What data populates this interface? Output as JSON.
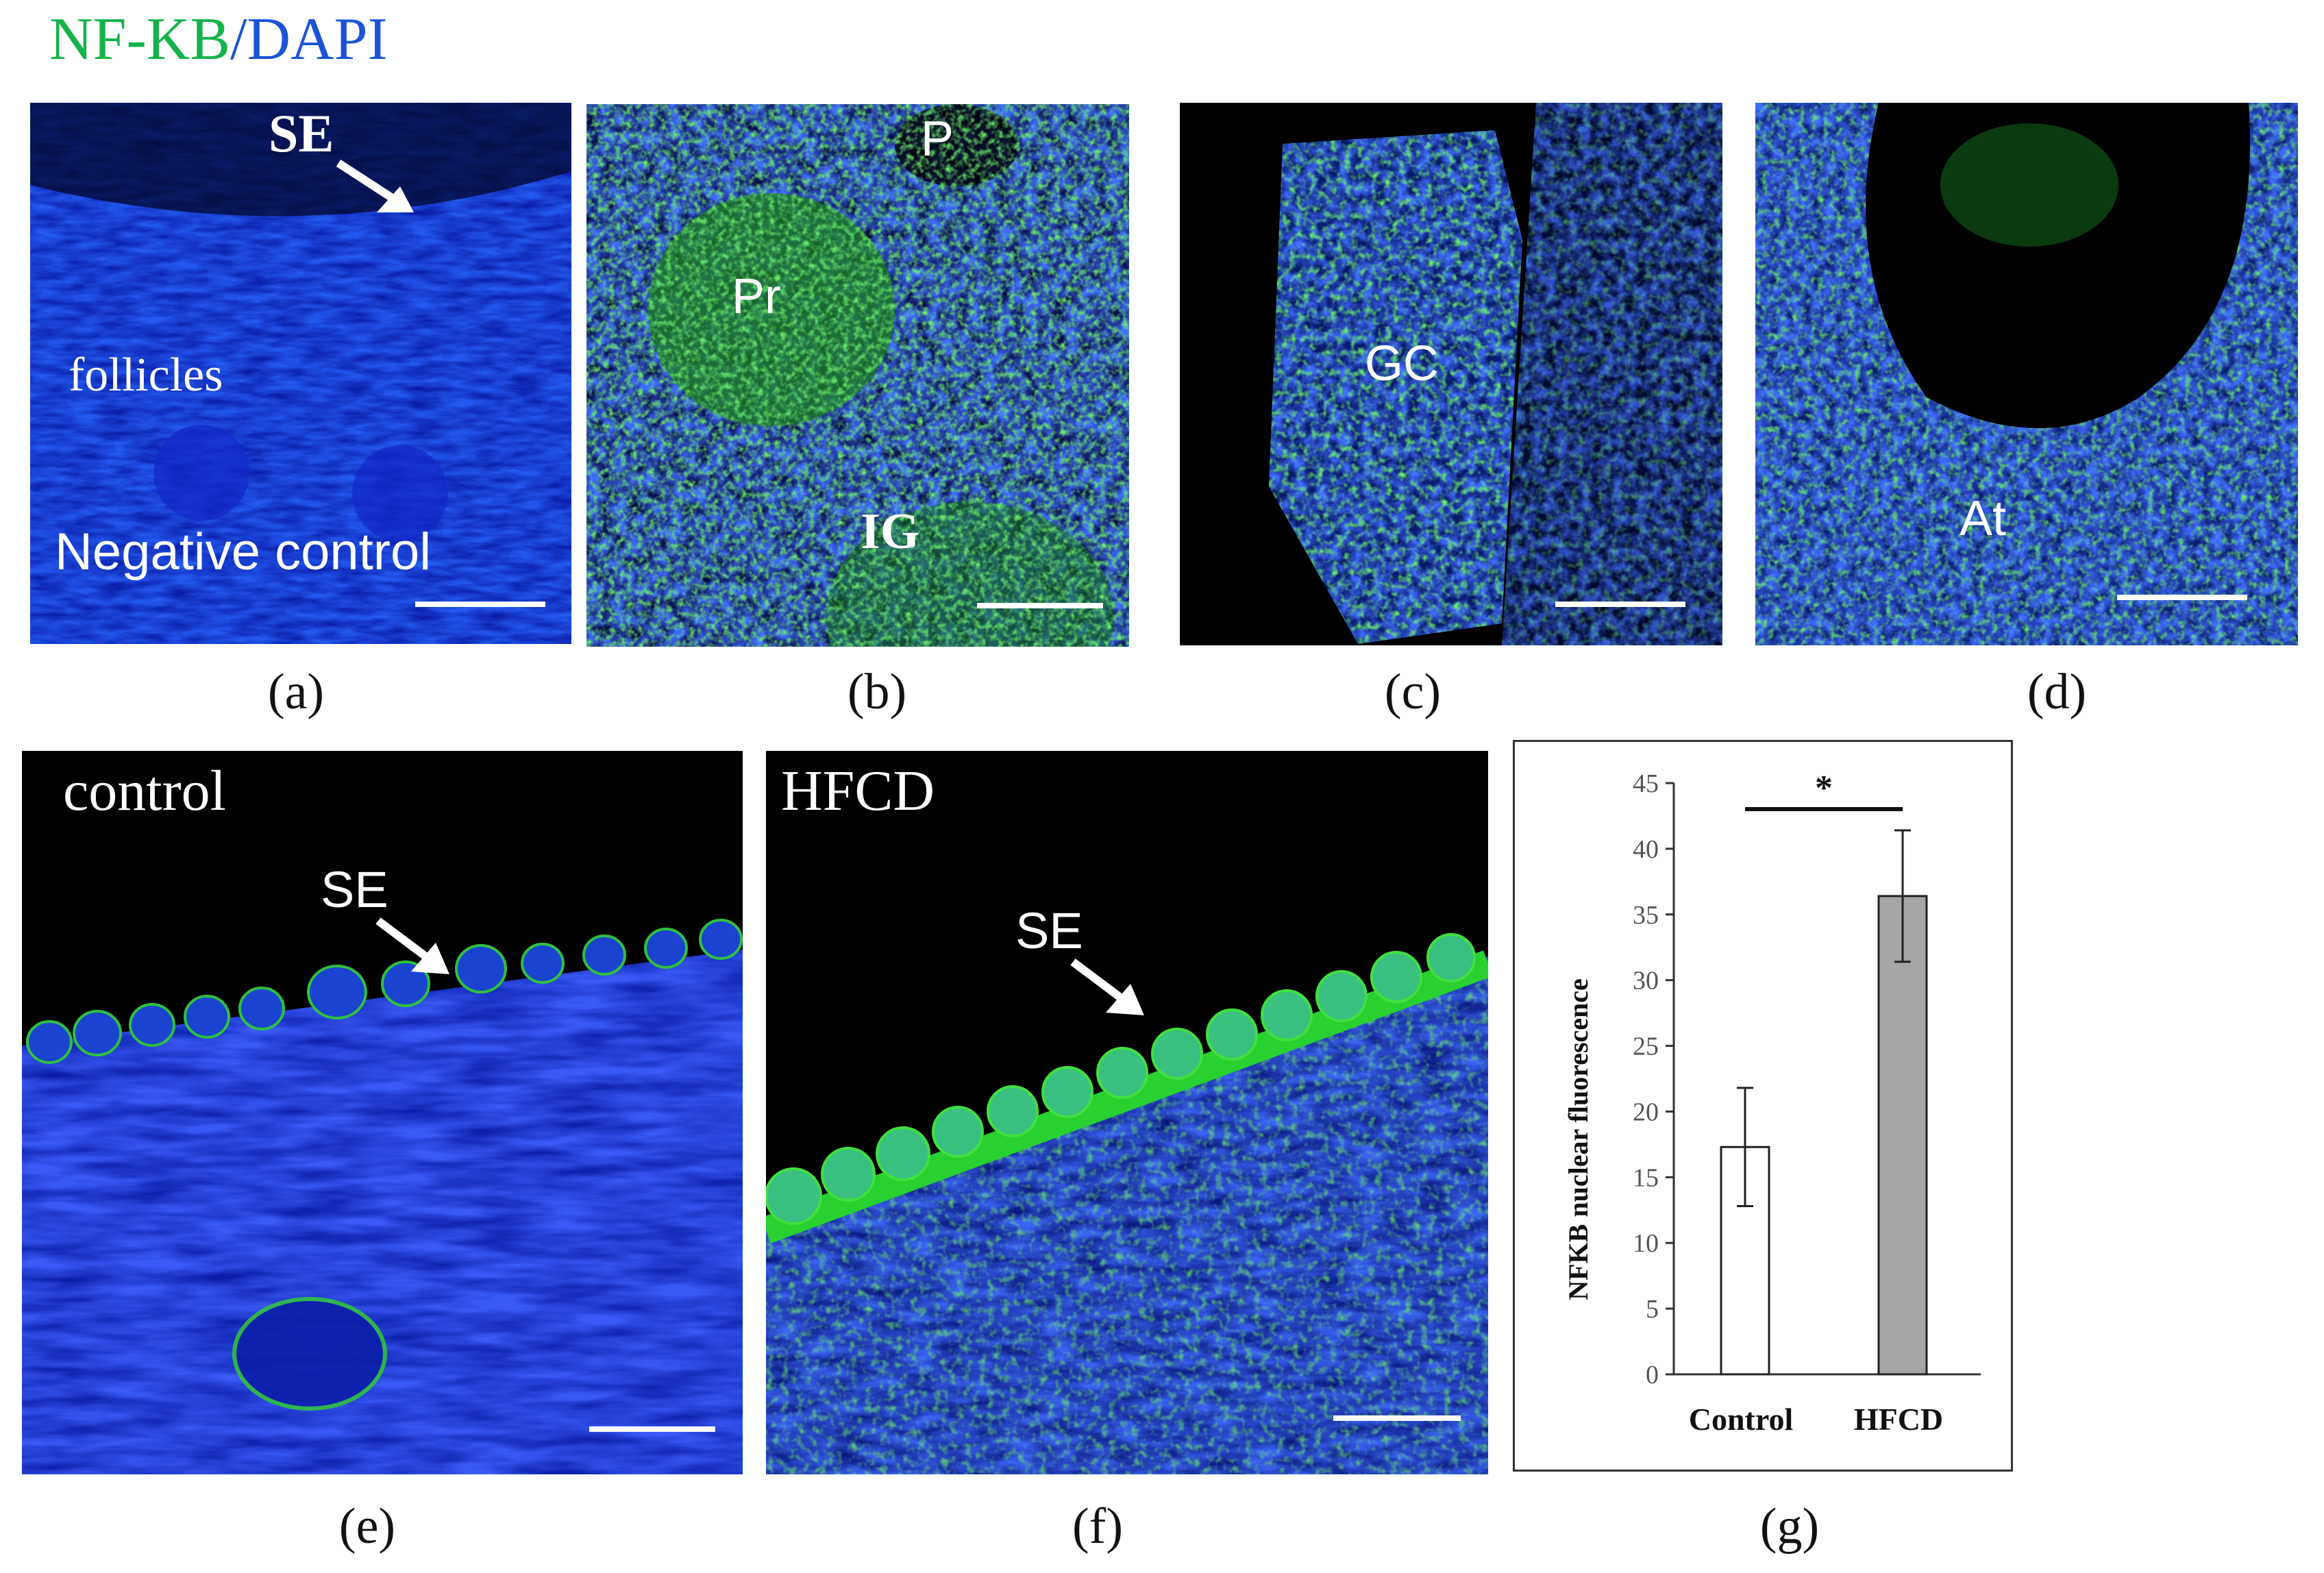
{
  "figure_title": {
    "green": "NF-KB",
    "sep": "/",
    "blue": "DAPI",
    "green_color": "#14b24a",
    "blue_color": "#1a53d6"
  },
  "panels": {
    "a": {
      "caption": "(a)",
      "labels": {
        "se": "SE",
        "follicles": "follicles",
        "negative": "Negative control"
      }
    },
    "b": {
      "caption": "(b)",
      "labels": {
        "p": "P",
        "pr": "Pr",
        "ig": "IG"
      }
    },
    "c": {
      "caption": "(c)",
      "labels": {
        "gc": "GC"
      }
    },
    "d": {
      "caption": "(d)",
      "labels": {
        "at": "At"
      }
    },
    "e": {
      "caption": "(e)",
      "labels": {
        "title": "control",
        "se": "SE"
      }
    },
    "f": {
      "caption": "(f)",
      "labels": {
        "title": "HFCD",
        "se": "SE"
      }
    },
    "g": {
      "caption": "(g)"
    }
  },
  "colors": {
    "dapi": "#1030e0",
    "nfkb": "#22d030",
    "bar_hfcd": "#a6a6a6",
    "bar_control": "#ffffff"
  },
  "chart_data": {
    "type": "bar",
    "categories": [
      "Control",
      "HFCD"
    ],
    "values": [
      17.3,
      36.4
    ],
    "errors": [
      4.5,
      5.0
    ],
    "ylabel": "NFKB nuclear fluorescence",
    "ylim": [
      0,
      45
    ],
    "yticks": [
      "0",
      "5",
      "10",
      "15",
      "20",
      "25",
      "30",
      "35",
      "40",
      "45"
    ],
    "significance": "*",
    "grid": false
  }
}
